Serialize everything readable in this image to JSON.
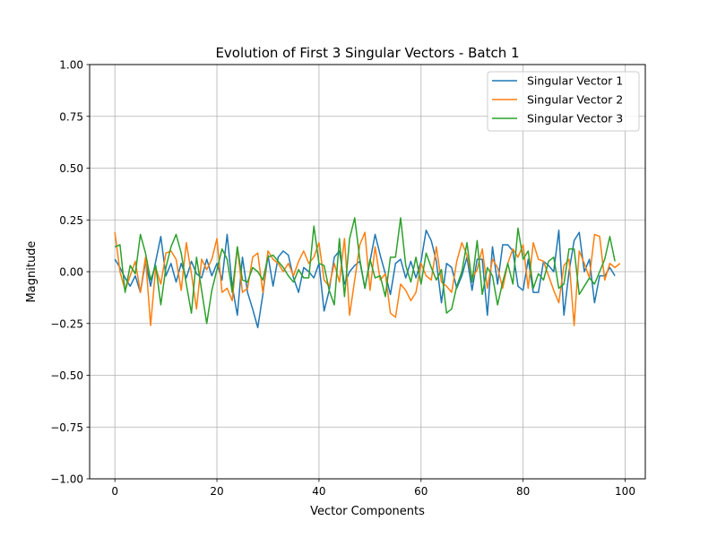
{
  "chart_data": {
    "type": "line",
    "title": "Evolution of First 3 Singular Vectors - Batch 1",
    "xlabel": "Vector Components",
    "ylabel": "Magnitude",
    "xlim": [
      -4.95,
      103.95
    ],
    "ylim": [
      -1.0,
      1.0
    ],
    "xticks": [
      0,
      20,
      40,
      60,
      80,
      100
    ],
    "xtick_labels": [
      "0",
      "20",
      "40",
      "60",
      "80",
      "100"
    ],
    "yticks": [
      -1.0,
      -0.75,
      -0.5,
      -0.25,
      0.0,
      0.25,
      0.5,
      0.75,
      1.0
    ],
    "ytick_labels": [
      "−1.00",
      "−0.75",
      "−0.50",
      "−0.25",
      "0.00",
      "0.25",
      "0.50",
      "0.75",
      "1.00"
    ],
    "grid": true,
    "legend": "top-right",
    "series": [
      {
        "name": "Singular Vector 1",
        "color": "#1f77b4",
        "values": [
          0.06,
          0.02,
          -0.03,
          -0.07,
          -0.02,
          -0.1,
          0.05,
          -0.07,
          0.05,
          0.17,
          -0.02,
          0.04,
          -0.05,
          0.04,
          -0.03,
          0.05,
          -0.01,
          -0.03,
          0.06,
          -0.02,
          0.04,
          -0.04,
          0.18,
          -0.07,
          -0.21,
          0.07,
          -0.1,
          -0.18,
          -0.27,
          -0.11,
          0.08,
          -0.07,
          0.07,
          0.1,
          0.08,
          -0.03,
          -0.1,
          0.02,
          0.0,
          -0.03,
          0.04,
          -0.19,
          -0.09,
          0.07,
          0.1,
          -0.06,
          0.0,
          0.03,
          0.05,
          -0.08,
          0.05,
          0.18,
          0.08,
          -0.01,
          -0.11,
          0.04,
          0.06,
          -0.03,
          0.05,
          -0.03,
          0.05,
          0.2,
          0.15,
          0.05,
          -0.15,
          0.04,
          0.02,
          -0.08,
          -0.02,
          0.07,
          -0.09,
          0.06,
          0.06,
          -0.21,
          0.12,
          -0.06,
          0.13,
          0.13,
          0.1,
          -0.07,
          -0.09,
          0.06,
          -0.1,
          -0.1,
          0.05,
          0.03,
          0.0,
          0.2,
          -0.21,
          0.0,
          0.15,
          0.19,
          0.0,
          0.06,
          -0.15,
          -0.02,
          -0.02,
          0.02,
          -0.02
        ]
      },
      {
        "name": "Singular Vector 2",
        "color": "#ff7f0e",
        "values": [
          0.19,
          0.0,
          -0.09,
          -0.02,
          0.05,
          -0.1,
          0.07,
          -0.26,
          0.02,
          -0.06,
          0.09,
          0.1,
          0.06,
          -0.09,
          0.14,
          -0.01,
          -0.18,
          0.06,
          0.01,
          0.06,
          0.16,
          -0.1,
          -0.08,
          -0.14,
          0.12,
          -0.1,
          -0.08,
          0.07,
          0.09,
          -0.1,
          0.1,
          0.06,
          0.04,
          0.0,
          0.04,
          -0.02,
          0.05,
          0.1,
          0.04,
          0.07,
          0.14,
          -0.04,
          -0.07,
          0.04,
          -0.05,
          0.16,
          -0.21,
          -0.04,
          0.13,
          0.19,
          -0.09,
          0.12,
          -0.04,
          -0.01,
          -0.2,
          -0.22,
          -0.06,
          -0.09,
          -0.14,
          -0.1,
          0.04,
          -0.02,
          -0.04,
          0.12,
          -0.05,
          -0.07,
          -0.1,
          0.05,
          0.14,
          0.08,
          -0.03,
          0.01,
          0.11,
          -0.08,
          0.06,
          0.02,
          -0.08,
          0.04,
          0.11,
          0.07,
          0.13,
          -0.08,
          0.14,
          0.06,
          0.05,
          -0.02,
          -0.09,
          -0.15,
          0.03,
          0.06,
          -0.26,
          0.1,
          0.04,
          -0.03,
          0.18,
          0.17,
          -0.04,
          0.04,
          0.02,
          0.04
        ]
      },
      {
        "name": "Singular Vector 3",
        "color": "#2ca02c",
        "values": [
          0.12,
          0.13,
          -0.1,
          0.03,
          -0.01,
          0.18,
          0.09,
          -0.04,
          0.03,
          -0.16,
          0.02,
          0.12,
          0.18,
          0.09,
          -0.06,
          -0.2,
          0.07,
          -0.09,
          -0.25,
          -0.09,
          0.01,
          0.11,
          0.06,
          -0.1,
          0.12,
          -0.04,
          -0.05,
          0.02,
          0.0,
          -0.04,
          0.07,
          0.08,
          0.05,
          0.02,
          -0.02,
          -0.05,
          0.01,
          -0.03,
          -0.03,
          0.22,
          0.04,
          0.03,
          -0.09,
          -0.16,
          0.16,
          -0.12,
          0.16,
          0.26,
          0.06,
          -0.08,
          0.06,
          -0.03,
          -0.02,
          -0.12,
          0.07,
          0.07,
          0.26,
          0.03,
          -0.05,
          0.07,
          -0.06,
          0.09,
          0.02,
          -0.04,
          0.01,
          -0.2,
          -0.18,
          -0.07,
          0.0,
          0.14,
          -0.05,
          0.15,
          -0.11,
          0.02,
          -0.02,
          -0.16,
          -0.05,
          0.04,
          -0.06,
          0.21,
          0.06,
          0.1,
          -0.08,
          -0.01,
          -0.04,
          0.05,
          0.07,
          -0.08,
          -0.06,
          0.11,
          0.11,
          -0.11,
          -0.07,
          -0.03,
          -0.06,
          0.0,
          0.06,
          0.17,
          0.05
        ]
      }
    ]
  }
}
